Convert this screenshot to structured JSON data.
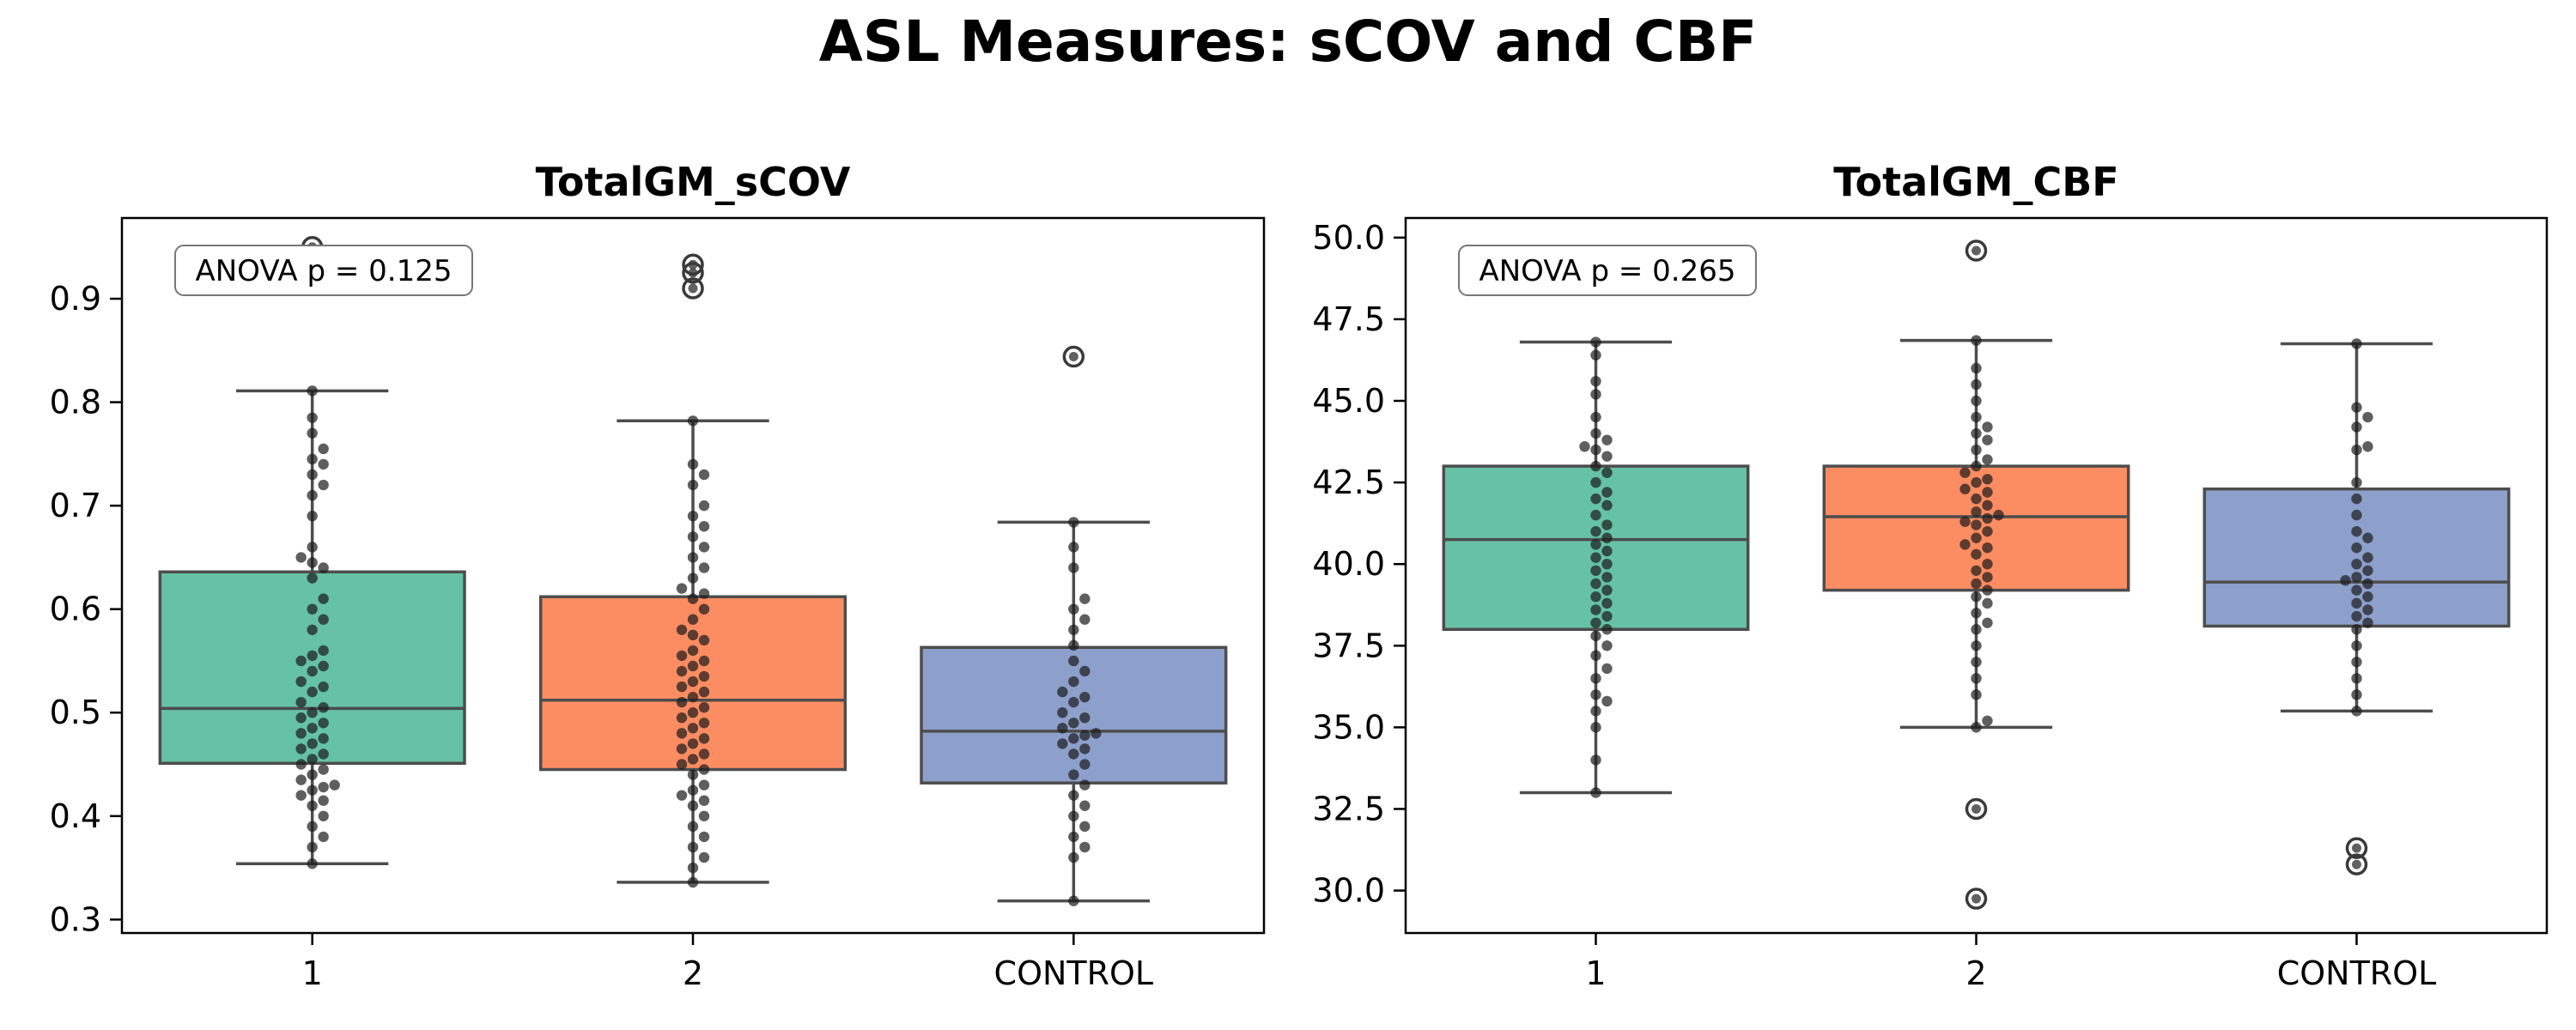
{
  "title": "ASL Measures: sCOV and CBF",
  "colors": {
    "1": "#66c2a5",
    "2": "#fc8d62",
    "CONTROL": "#8da0cb",
    "box_edge": "#4d4d4d",
    "points": "#1a1a1a"
  },
  "chart_data": [
    {
      "type": "box",
      "title": "TotalGM_sCOV",
      "xlabel": "",
      "ylabel": "",
      "categories": [
        "1",
        "2",
        "CONTROL"
      ],
      "ylim": [
        0.287,
        0.978
      ],
      "yticks": [
        0.3,
        0.4,
        0.5,
        0.6,
        0.7,
        0.8,
        0.9
      ],
      "yticklabels": [
        "0.3",
        "0.4",
        "0.5",
        "0.6",
        "0.7",
        "0.8",
        "0.9"
      ],
      "annotation": "ANOVA p = 0.125",
      "boxes": [
        {
          "category": "1",
          "whisker_low": 0.354,
          "q1": 0.451,
          "median": 0.504,
          "q3": 0.636,
          "whisker_high": 0.811,
          "outliers": [
            0.95
          ]
        },
        {
          "category": "2",
          "whisker_low": 0.336,
          "q1": 0.445,
          "median": 0.512,
          "q3": 0.612,
          "whisker_high": 0.782,
          "outliers": [
            0.933,
            0.925,
            0.91
          ]
        },
        {
          "category": "CONTROL",
          "whisker_low": 0.318,
          "q1": 0.432,
          "median": 0.482,
          "q3": 0.563,
          "whisker_high": 0.684,
          "outliers": [
            0.844
          ]
        }
      ],
      "points": [
        {
          "category": "1",
          "values": [
            0.811,
            0.785,
            0.77,
            0.755,
            0.745,
            0.74,
            0.73,
            0.72,
            0.71,
            0.69,
            0.66,
            0.65,
            0.645,
            0.64,
            0.63,
            0.61,
            0.6,
            0.59,
            0.58,
            0.56,
            0.555,
            0.55,
            0.545,
            0.54,
            0.53,
            0.525,
            0.52,
            0.51,
            0.505,
            0.5,
            0.495,
            0.49,
            0.485,
            0.48,
            0.475,
            0.47,
            0.465,
            0.46,
            0.455,
            0.45,
            0.445,
            0.44,
            0.435,
            0.43,
            0.428,
            0.425,
            0.42,
            0.415,
            0.41,
            0.4,
            0.39,
            0.38,
            0.37,
            0.354
          ]
        },
        {
          "category": "2",
          "values": [
            0.782,
            0.74,
            0.73,
            0.72,
            0.7,
            0.69,
            0.68,
            0.67,
            0.66,
            0.65,
            0.64,
            0.63,
            0.62,
            0.615,
            0.61,
            0.6,
            0.59,
            0.58,
            0.575,
            0.57,
            0.56,
            0.555,
            0.55,
            0.545,
            0.54,
            0.535,
            0.53,
            0.525,
            0.52,
            0.515,
            0.51,
            0.505,
            0.5,
            0.495,
            0.49,
            0.485,
            0.48,
            0.475,
            0.47,
            0.465,
            0.46,
            0.455,
            0.45,
            0.445,
            0.44,
            0.43,
            0.425,
            0.42,
            0.415,
            0.41,
            0.4,
            0.39,
            0.38,
            0.37,
            0.36,
            0.35,
            0.336
          ]
        },
        {
          "category": "CONTROL",
          "values": [
            0.684,
            0.66,
            0.64,
            0.61,
            0.6,
            0.59,
            0.58,
            0.565,
            0.55,
            0.54,
            0.53,
            0.52,
            0.515,
            0.51,
            0.5,
            0.495,
            0.49,
            0.485,
            0.48,
            0.478,
            0.475,
            0.47,
            0.465,
            0.46,
            0.45,
            0.44,
            0.43,
            0.42,
            0.41,
            0.4,
            0.39,
            0.38,
            0.37,
            0.36,
            0.318
          ]
        }
      ]
    },
    {
      "type": "box",
      "title": "TotalGM_CBF",
      "xlabel": "",
      "ylabel": "",
      "categories": [
        "1",
        "2",
        "CONTROL"
      ],
      "ylim": [
        28.7,
        50.6
      ],
      "yticks": [
        30.0,
        32.5,
        35.0,
        37.5,
        40.0,
        42.5,
        45.0,
        47.5,
        50.0
      ],
      "yticklabels": [
        "30.0",
        "32.5",
        "35.0",
        "37.5",
        "40.0",
        "42.5",
        "45.0",
        "47.5",
        "50.0"
      ],
      "annotation": "ANOVA p = 0.265",
      "boxes": [
        {
          "category": "1",
          "whisker_low": 33.0,
          "q1": 38.0,
          "median": 40.75,
          "q3": 43.0,
          "whisker_high": 46.8,
          "outliers": []
        },
        {
          "category": "2",
          "whisker_low": 35.0,
          "q1": 39.2,
          "median": 41.45,
          "q3": 43.0,
          "whisker_high": 46.85,
          "outliers": [
            49.6,
            32.5,
            29.75
          ]
        },
        {
          "category": "CONTROL",
          "whisker_low": 35.5,
          "q1": 38.1,
          "median": 39.45,
          "q3": 42.3,
          "whisker_high": 46.75,
          "outliers": [
            31.3,
            30.8
          ]
        }
      ],
      "points": [
        {
          "category": "1",
          "values": [
            46.8,
            46.4,
            45.6,
            45.2,
            44.5,
            44.0,
            43.8,
            43.6,
            43.5,
            43.3,
            43.0,
            42.8,
            42.5,
            42.2,
            42.0,
            41.8,
            41.5,
            41.2,
            41.0,
            40.8,
            40.6,
            40.4,
            40.2,
            40.0,
            39.8,
            39.6,
            39.4,
            39.2,
            39.0,
            38.8,
            38.6,
            38.4,
            38.2,
            38.0,
            37.8,
            37.5,
            37.2,
            36.8,
            36.5,
            36.0,
            35.8,
            35.5,
            35.0,
            34.0,
            33.0
          ]
        },
        {
          "category": "2",
          "values": [
            46.85,
            46.0,
            45.5,
            45.0,
            44.5,
            44.2,
            44.0,
            43.8,
            43.5,
            43.2,
            43.0,
            42.8,
            42.6,
            42.5,
            42.3,
            42.2,
            42.0,
            41.8,
            41.6,
            41.5,
            41.4,
            41.3,
            41.2,
            41.0,
            40.8,
            40.6,
            40.5,
            40.3,
            40.0,
            39.8,
            39.6,
            39.4,
            39.2,
            39.0,
            38.8,
            38.5,
            38.2,
            38.0,
            37.5,
            37.0,
            36.5,
            36.0,
            35.2,
            35.0
          ]
        },
        {
          "category": "CONTROL",
          "values": [
            46.75,
            44.8,
            44.5,
            44.2,
            43.6,
            43.5,
            42.5,
            42.0,
            41.5,
            41.0,
            40.8,
            40.5,
            40.2,
            40.0,
            39.8,
            39.6,
            39.5,
            39.4,
            39.2,
            39.0,
            38.8,
            38.6,
            38.4,
            38.2,
            38.0,
            37.5,
            37.0,
            36.5,
            36.0,
            35.5
          ]
        }
      ]
    }
  ]
}
